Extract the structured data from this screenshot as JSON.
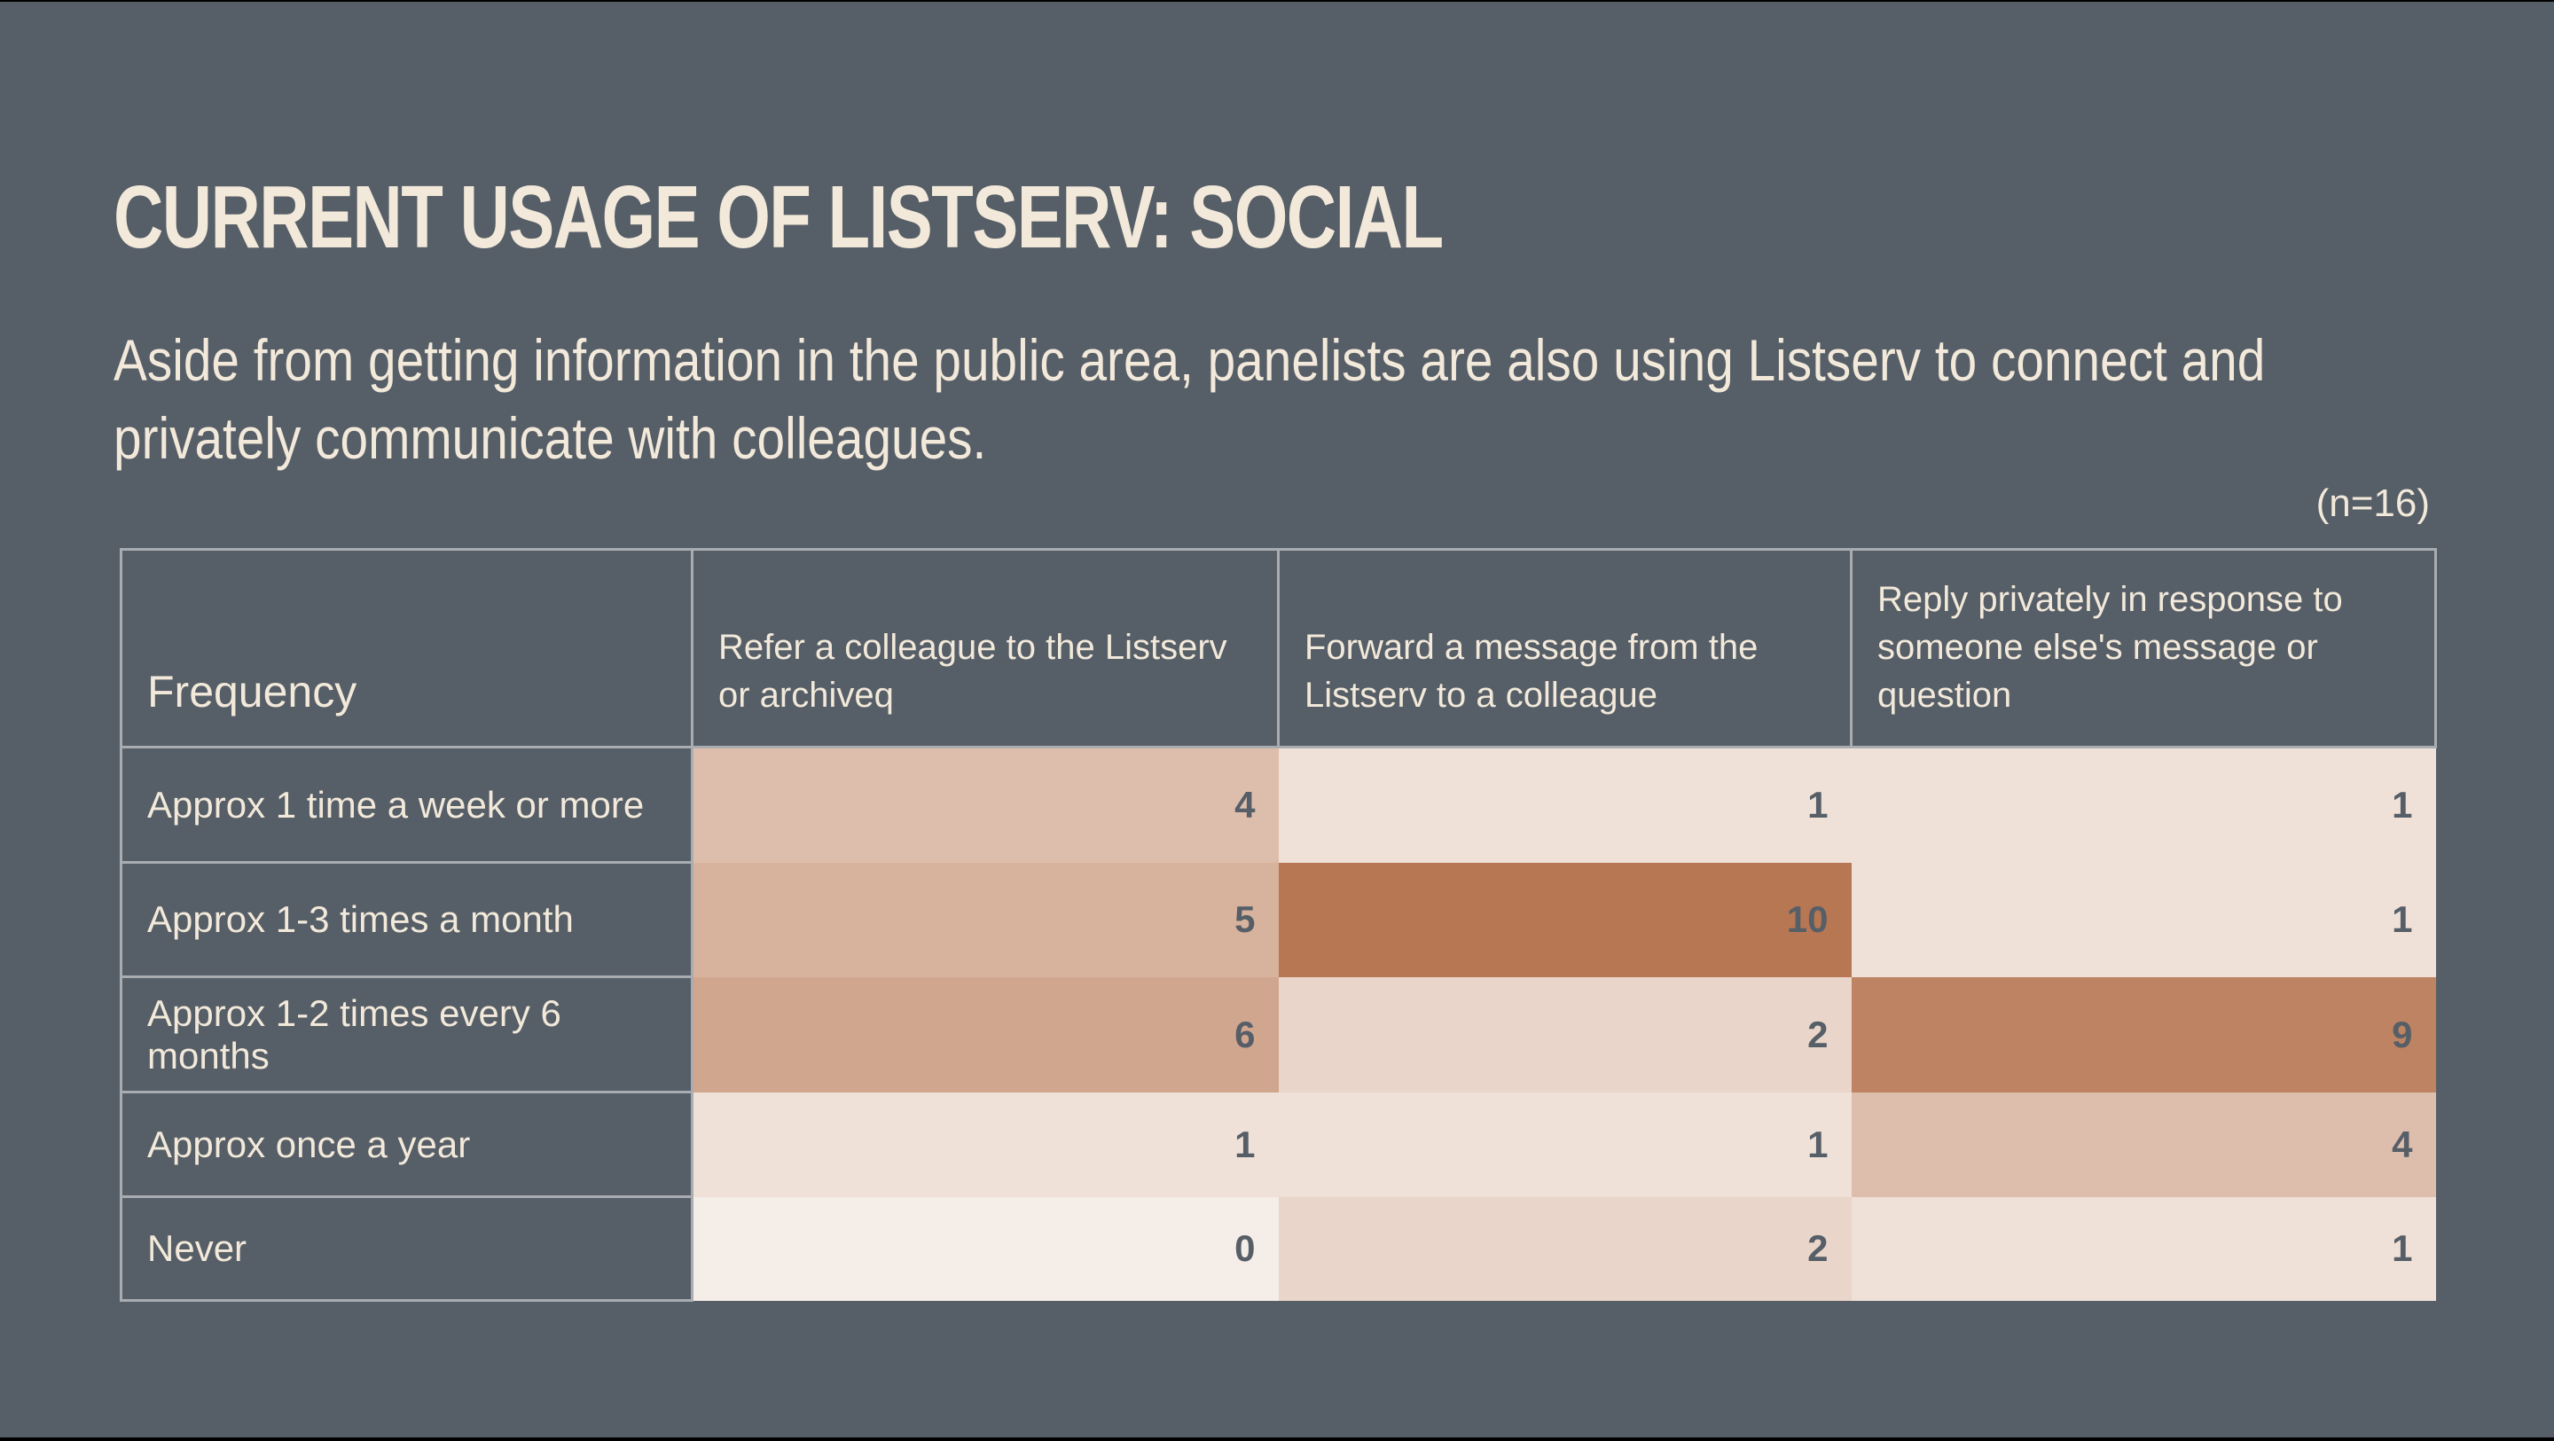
{
  "title": "CURRENT USAGE OF LISTSERV: SOCIAL",
  "subtitle": "Aside from getting information in the public area, panelists are also using Listserv to connect and privately communicate with colleagues.",
  "sample_note": "(n=16)",
  "colors": {
    "background": "#565e67",
    "text": "#f2e9da",
    "heat_low": "#f5ede7",
    "heat_high": "#b87753"
  },
  "table": {
    "headers": [
      "Frequency",
      "Refer a colleague to the Listserv or archiveq",
      "Forward a message from the Listserv to a colleague",
      "Reply privately in response to someone else's message or question"
    ],
    "rows": [
      {
        "label": "Approx 1 time a week or more",
        "values": [
          "4",
          "1",
          "1"
        ]
      },
      {
        "label": "Approx 1-3 times a month",
        "values": [
          "5",
          "10",
          "1"
        ]
      },
      {
        "label": "Approx 1-2 times every 6 months",
        "values": [
          "6",
          "2",
          "9"
        ]
      },
      {
        "label": "Approx once a year",
        "values": [
          "1",
          "1",
          "4"
        ]
      },
      {
        "label": "Never",
        "values": [
          "0",
          "2",
          "1"
        ]
      }
    ]
  }
}
